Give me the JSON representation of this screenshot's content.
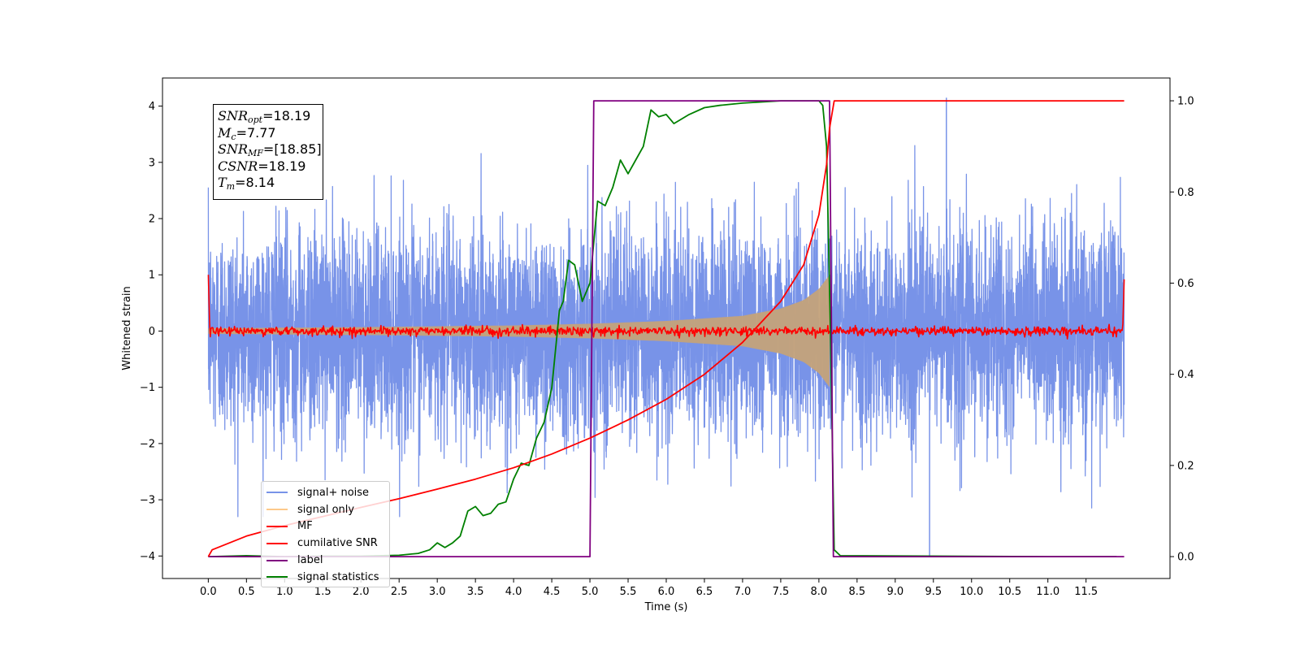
{
  "chart_data": {
    "type": "line",
    "xlabel": "Time (s)",
    "ylabel": "Whitened strain",
    "xlim": [
      -0.6,
      12.6
    ],
    "ylim_left": [
      -4.4,
      4.5
    ],
    "ylim_right": [
      -0.048,
      1.05
    ],
    "x_ticks": [
      0.0,
      0.5,
      1.0,
      1.5,
      2.0,
      2.5,
      3.0,
      3.5,
      4.0,
      4.5,
      5.0,
      5.5,
      6.0,
      6.5,
      7.0,
      7.5,
      8.0,
      8.5,
      9.0,
      9.5,
      10.0,
      10.5,
      11.0,
      11.5
    ],
    "x_tick_labels": [
      "0.0",
      "0.5",
      "1.0",
      "1.5",
      "2.0",
      "2.5",
      "3.0",
      "3.5",
      "4.0",
      "4.5",
      "5.0",
      "5.5",
      "6.0",
      "6.5",
      "7.0",
      "7.5",
      "8.0",
      "8.5",
      "9.0",
      "9.5",
      "10.0",
      "10.5",
      "11.0",
      "11.5"
    ],
    "y_ticks_left": [
      -4,
      -3,
      -2,
      -1,
      0,
      1,
      2,
      3,
      4
    ],
    "y_tick_labels_left": [
      "−4",
      "−3",
      "−2",
      "−1",
      "0",
      "1",
      "2",
      "3",
      "4"
    ],
    "y_ticks_right": [
      0.0,
      0.2,
      0.4,
      0.6,
      0.8,
      1.0
    ],
    "y_tick_labels_right": [
      "0.0",
      "0.2",
      "0.4",
      "0.6",
      "0.8",
      "1.0"
    ],
    "legend_position": "lower-left",
    "annotation": {
      "snr_opt": {
        "symbol": "SNR",
        "sub": "opt",
        "value": "=18.19"
      },
      "mc": {
        "symbol": "M",
        "sub": "c",
        "value": "=7.77"
      },
      "snr_mf": {
        "symbol": "SNR",
        "sub": "MF",
        "value": "=[18.85]"
      },
      "csnr": {
        "symbol": "CSNR",
        "sub": "",
        "value": "=18.19"
      },
      "tm": {
        "symbol": "T",
        "sub": "m",
        "value": "=8.14"
      }
    },
    "series": [
      {
        "name": "signal+ noise",
        "axis": "left",
        "color": "#7893e8",
        "description_x_range": [
          0.0,
          12.0
        ],
        "approx_amplitude_std": 1.0,
        "outliers": [
          [
            9.45,
            -4.0
          ],
          [
            9.67,
            4.15
          ]
        ]
      },
      {
        "name": "signal only",
        "axis": "left",
        "color": "#fdc98a",
        "description_x_range": [
          0.0,
          8.14
        ],
        "envelope": {
          "x": [
            0.0,
            2.0,
            4.0,
            5.0,
            6.0,
            7.0,
            7.5,
            7.8,
            8.0,
            8.14
          ],
          "amplitude": [
            0.05,
            0.07,
            0.1,
            0.13,
            0.18,
            0.27,
            0.4,
            0.55,
            0.75,
            1.0
          ]
        }
      },
      {
        "name": "MF",
        "axis": "left",
        "color": "#ff0000",
        "description_x_range": [
          0.0,
          12.0
        ],
        "edge_spikes": [
          [
            0.0,
            1.0
          ],
          [
            12.0,
            0.92
          ]
        ],
        "approx_amplitude": 0.07
      },
      {
        "name": "cumilative SNR",
        "axis": "right",
        "color": "#ff0000",
        "points": [
          [
            0.0,
            0.0
          ],
          [
            0.05,
            0.015
          ],
          [
            0.5,
            0.045
          ],
          [
            1.0,
            0.068
          ],
          [
            1.5,
            0.088
          ],
          [
            2.0,
            0.108
          ],
          [
            2.5,
            0.127
          ],
          [
            3.0,
            0.148
          ],
          [
            3.5,
            0.17
          ],
          [
            4.0,
            0.195
          ],
          [
            4.5,
            0.225
          ],
          [
            5.0,
            0.26
          ],
          [
            5.5,
            0.3
          ],
          [
            6.0,
            0.345
          ],
          [
            6.5,
            0.4
          ],
          [
            7.0,
            0.47
          ],
          [
            7.5,
            0.56
          ],
          [
            7.8,
            0.64
          ],
          [
            8.0,
            0.75
          ],
          [
            8.1,
            0.86
          ],
          [
            8.14,
            0.94
          ],
          [
            8.2,
            1.0
          ],
          [
            12.0,
            1.0
          ]
        ]
      },
      {
        "name": "label",
        "axis": "right",
        "color": "#800080",
        "points": [
          [
            0.0,
            0.0
          ],
          [
            5.0,
            0.0
          ],
          [
            5.05,
            1.0
          ],
          [
            8.14,
            1.0
          ],
          [
            8.19,
            0.0
          ],
          [
            12.0,
            0.0
          ]
        ]
      },
      {
        "name": "signal statistics",
        "axis": "right",
        "color": "#008000",
        "points": [
          [
            0.0,
            0.0
          ],
          [
            0.5,
            0.002
          ],
          [
            1.0,
            0.0
          ],
          [
            1.5,
            0.001
          ],
          [
            2.0,
            0.001
          ],
          [
            2.5,
            0.003
          ],
          [
            2.75,
            0.007
          ],
          [
            2.9,
            0.015
          ],
          [
            3.0,
            0.03
          ],
          [
            3.1,
            0.02
          ],
          [
            3.2,
            0.03
          ],
          [
            3.3,
            0.045
          ],
          [
            3.4,
            0.1
          ],
          [
            3.5,
            0.11
          ],
          [
            3.6,
            0.09
          ],
          [
            3.7,
            0.095
          ],
          [
            3.8,
            0.115
          ],
          [
            3.9,
            0.12
          ],
          [
            4.0,
            0.17
          ],
          [
            4.1,
            0.205
          ],
          [
            4.2,
            0.2
          ],
          [
            4.3,
            0.26
          ],
          [
            4.4,
            0.295
          ],
          [
            4.5,
            0.37
          ],
          [
            4.6,
            0.54
          ],
          [
            4.65,
            0.56
          ],
          [
            4.72,
            0.65
          ],
          [
            4.8,
            0.64
          ],
          [
            4.9,
            0.56
          ],
          [
            5.0,
            0.6
          ],
          [
            5.1,
            0.78
          ],
          [
            5.2,
            0.77
          ],
          [
            5.3,
            0.81
          ],
          [
            5.4,
            0.87
          ],
          [
            5.5,
            0.84
          ],
          [
            5.6,
            0.87
          ],
          [
            5.7,
            0.9
          ],
          [
            5.8,
            0.98
          ],
          [
            5.9,
            0.965
          ],
          [
            6.0,
            0.97
          ],
          [
            6.1,
            0.95
          ],
          [
            6.2,
            0.96
          ],
          [
            6.3,
            0.97
          ],
          [
            6.5,
            0.985
          ],
          [
            6.7,
            0.99
          ],
          [
            7.0,
            0.995
          ],
          [
            7.5,
            1.0
          ],
          [
            8.0,
            1.0
          ],
          [
            8.05,
            0.99
          ],
          [
            8.1,
            0.9
          ],
          [
            8.15,
            0.5
          ],
          [
            8.2,
            0.015
          ],
          [
            8.28,
            0.002
          ],
          [
            11.0,
            0.0
          ],
          [
            11.9,
            0.0
          ]
        ]
      }
    ]
  }
}
